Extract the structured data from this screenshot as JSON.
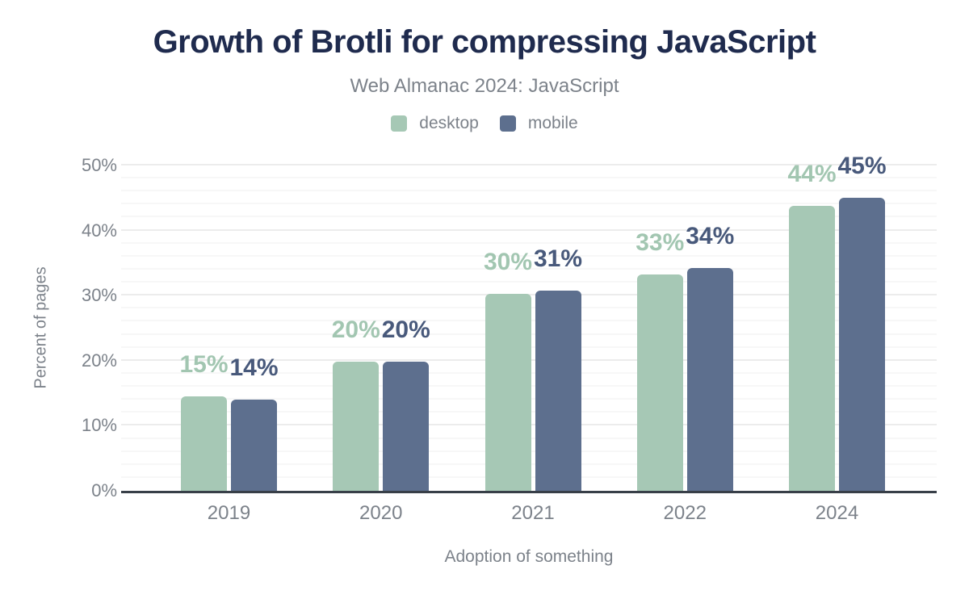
{
  "header": {
    "title": "Growth of Brotli for compressing JavaScript",
    "subtitle": "Web Almanac 2024: JavaScript"
  },
  "colors": {
    "bg": "#ffffff",
    "title_color": "#1f2b4e",
    "text_gray": "#7c828a",
    "axis_color": "#383f48",
    "grid_major": "#ececec",
    "grid_minor": "#f7f7f7"
  },
  "chart_data": {
    "type": "bar",
    "title": "Growth of Brotli for compressing JavaScript",
    "subtitle": "Web Almanac 2024: JavaScript",
    "categories": [
      "2019",
      "2020",
      "2021",
      "2022",
      "2024"
    ],
    "series": [
      {
        "name": "desktop",
        "color": "#a6c8b5",
        "label_color": "#a2c6b1",
        "values": [
          14.5,
          19.8,
          30.3,
          33.2,
          43.8
        ],
        "labels": [
          "15%",
          "20%",
          "30%",
          "33%",
          "44%"
        ]
      },
      {
        "name": "mobile",
        "color": "#5d6f8e",
        "label_color": "#48597b",
        "values": [
          14.0,
          19.8,
          30.8,
          34.2,
          45.1
        ],
        "labels": [
          "14%",
          "20%",
          "31%",
          "34%",
          "45%"
        ]
      }
    ],
    "xlabel": "Adoption of something",
    "ylabel": "Percent of pages",
    "ylim": [
      0,
      50
    ],
    "ytick_values": [
      0,
      10,
      20,
      30,
      40,
      50
    ],
    "ytick_labels": [
      "0%",
      "10%",
      "20%",
      "30%",
      "40%",
      "50%"
    ],
    "major_grid_step": 10,
    "minor_grid_step": 2,
    "grid": true,
    "legend_position": "top"
  }
}
